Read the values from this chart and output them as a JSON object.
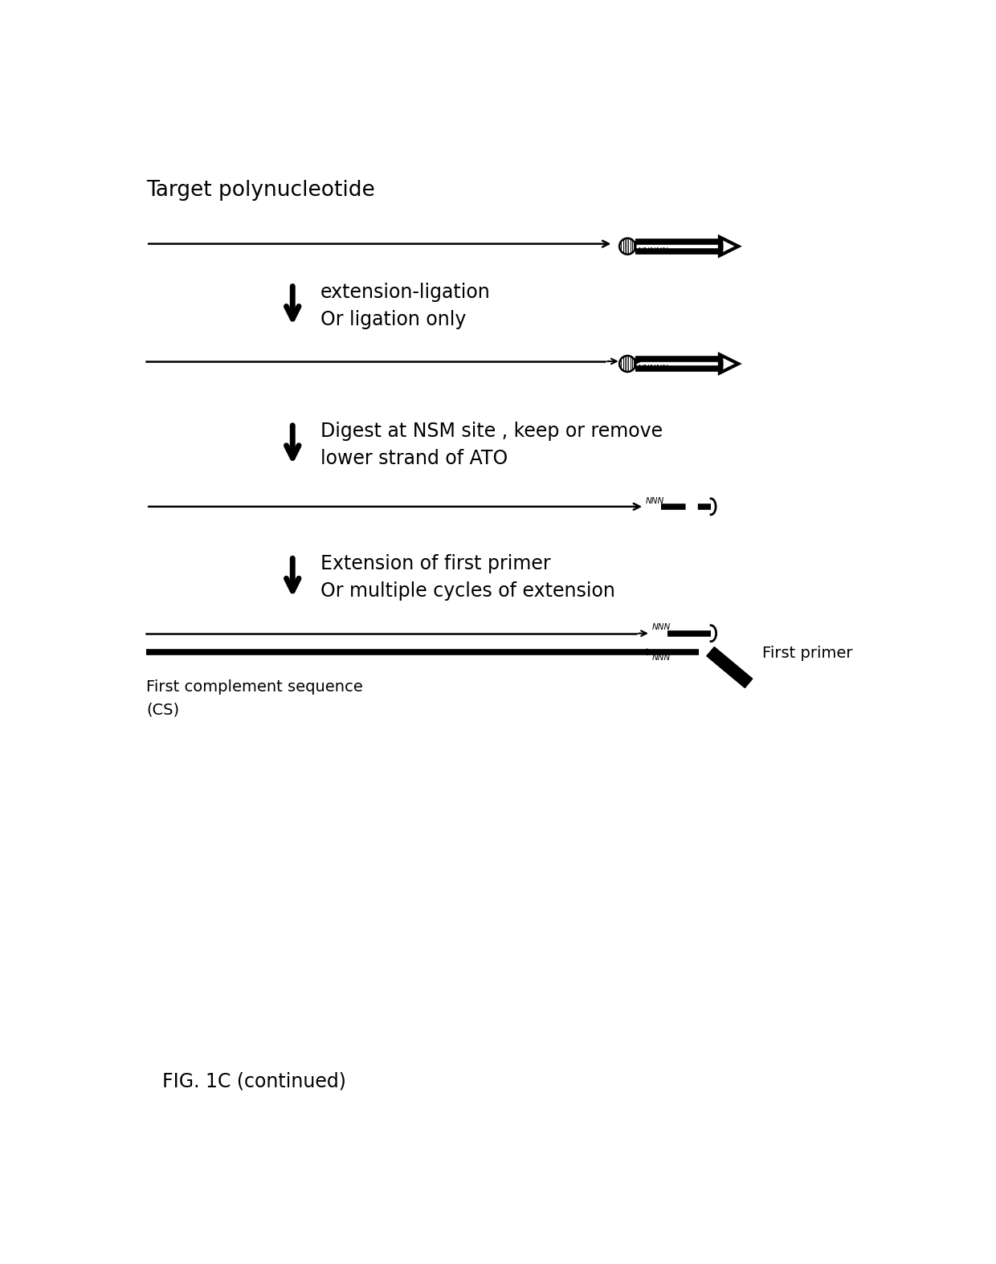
{
  "bg_color": "#ffffff",
  "title_text": "Target polynucleotide",
  "step1_label1": "extension-ligation",
  "step1_label2": "Or ligation only",
  "step2_label1": "Digest at NSM site , keep or remove",
  "step2_label2": "lower strand of ATO",
  "step3_label1": "Extension of first primer",
  "step3_label2": "Or multiple cycles of extension",
  "first_primer_label": "First primer",
  "cs_label1": "First complement sequence",
  "cs_label2": "(CS)",
  "fig_label": "FIG. 1C (continued)",
  "fig_width": 12.4,
  "fig_height": 15.74
}
